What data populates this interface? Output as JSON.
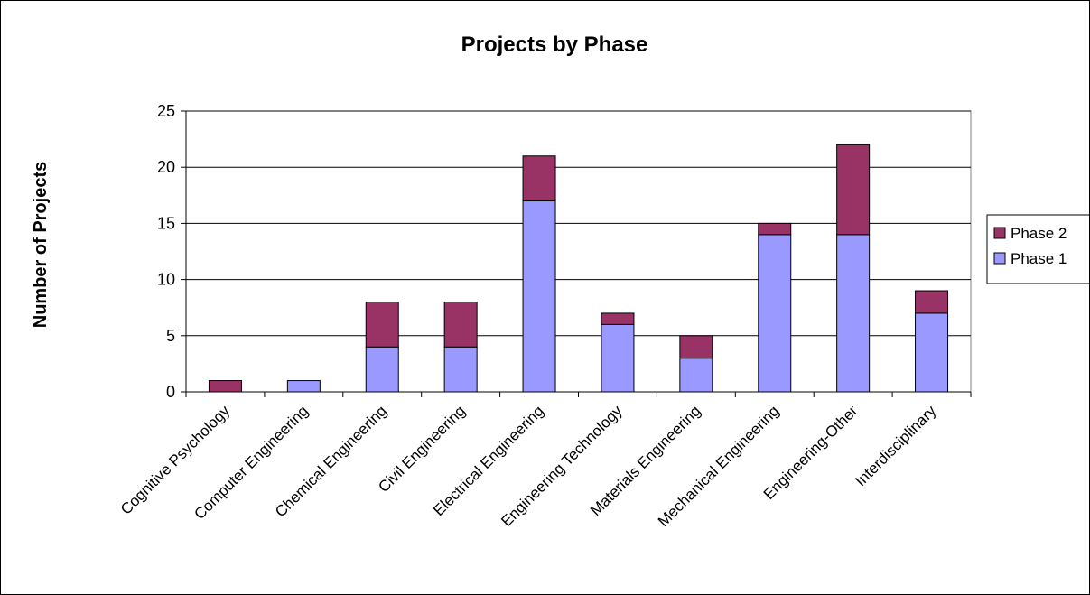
{
  "chart_data": {
    "type": "bar",
    "stacked": true,
    "title": "Projects by Phase",
    "xlabel": "",
    "ylabel": "Number of Projects",
    "ylim": [
      0,
      25
    ],
    "yticks": [
      0,
      5,
      10,
      15,
      20,
      25
    ],
    "grid": true,
    "legend_position": "right",
    "categories": [
      "Cognitive Psychology",
      "Computer Engineering",
      "Chemical Engineering",
      "Civil Engineering",
      "Electrical Engineering",
      "Engineering Technology",
      "Materials Engineering",
      "Mechanical Engineering",
      "Engineering-Other",
      "Interdisciplinary"
    ],
    "series": [
      {
        "name": "Phase 1",
        "color": "#9999ff",
        "values": [
          0,
          1,
          4,
          4,
          17,
          6,
          3,
          14,
          14,
          7
        ]
      },
      {
        "name": "Phase 2",
        "color": "#993366",
        "values": [
          1,
          0,
          4,
          4,
          4,
          1,
          2,
          1,
          8,
          2
        ]
      }
    ],
    "legend_order": [
      "Phase 2",
      "Phase 1"
    ]
  }
}
